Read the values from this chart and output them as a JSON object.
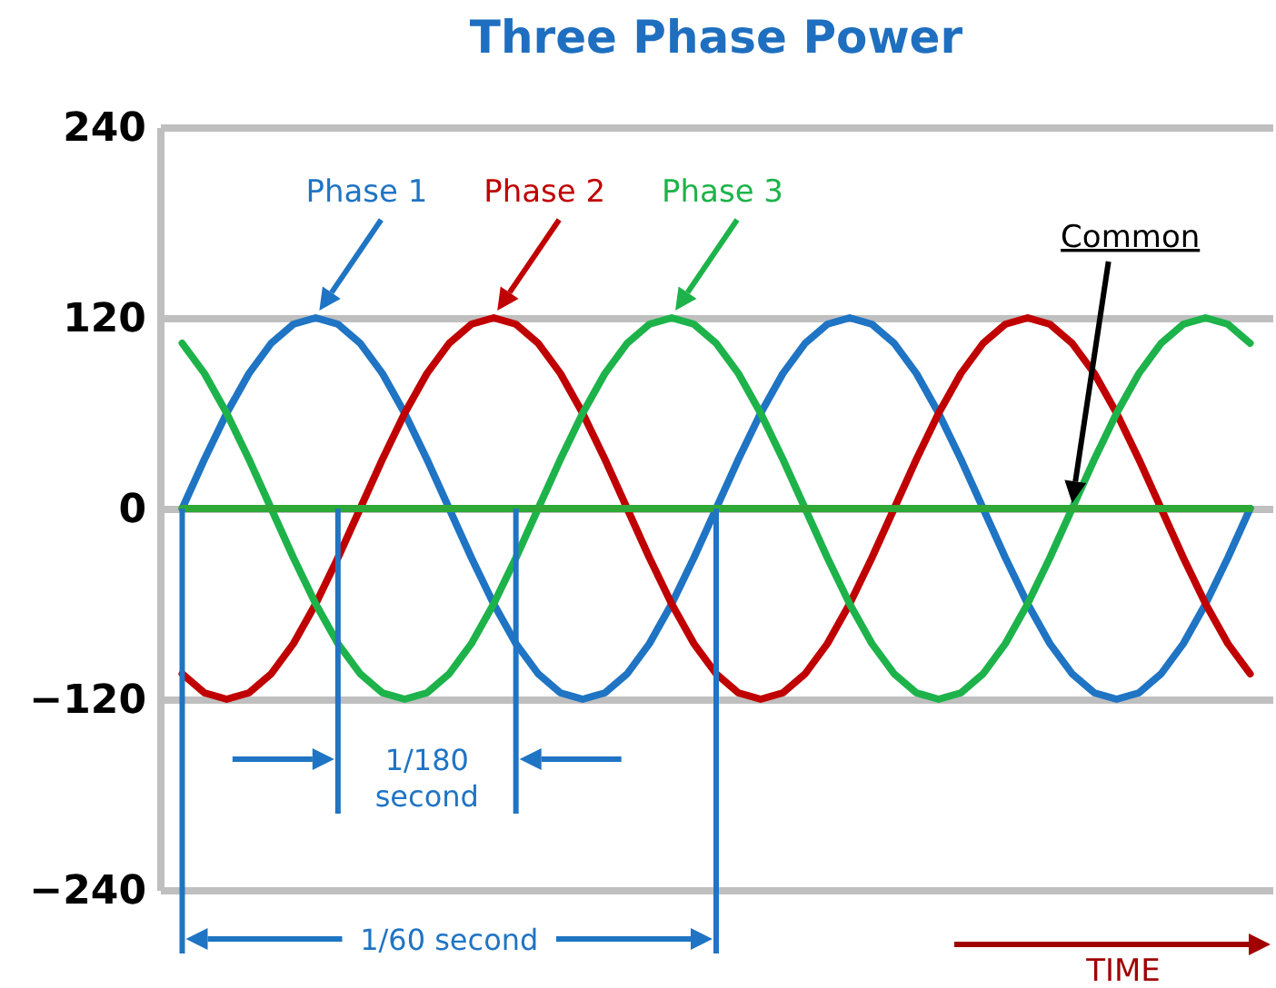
{
  "chart_data": {
    "type": "line",
    "title": "Three Phase Power",
    "xlabel": "TIME",
    "categories": [
      null,
      null,
      null,
      null,
      null,
      null,
      null,
      null,
      null,
      null,
      null,
      null,
      null,
      null,
      null,
      null,
      null,
      null,
      null,
      null,
      null,
      null,
      null,
      null,
      null,
      null,
      null,
      null,
      null,
      null,
      null,
      null,
      null,
      null,
      null,
      null,
      null,
      null,
      null,
      null,
      null,
      null,
      null,
      null,
      null,
      null,
      null,
      null,
      null
    ],
    "series": [
      {
        "name": "Phase 1",
        "color": "#1f74c4",
        "values": [
          0,
          31,
          60,
          85,
          104,
          116,
          120,
          116,
          104,
          85,
          60,
          31,
          0,
          -31,
          -60,
          -85,
          -104,
          -116,
          -120,
          -116,
          -104,
          -85,
          -60,
          -31,
          0,
          31,
          60,
          85,
          104,
          116,
          120,
          116,
          104,
          85,
          60,
          31,
          0,
          -31,
          -60,
          -85,
          -104,
          -116,
          -120,
          -116,
          -104,
          -85,
          -60,
          -31,
          0
        ]
      },
      {
        "name": "Phase 2",
        "color": "#c00000",
        "values": [
          -104,
          -116,
          -120,
          -116,
          -104,
          -85,
          -60,
          -31,
          0,
          31,
          60,
          85,
          104,
          116,
          120,
          116,
          104,
          85,
          60,
          31,
          0,
          -31,
          -60,
          -85,
          -104,
          -116,
          -120,
          -116,
          -104,
          -85,
          -60,
          -31,
          0,
          31,
          60,
          85,
          104,
          116,
          120,
          116,
          104,
          85,
          60,
          31,
          0,
          -31,
          -60,
          -85,
          -104
        ]
      },
      {
        "name": "Phase 3",
        "color": "#1db34a",
        "values": [
          104,
          85,
          60,
          31,
          0,
          -31,
          -60,
          -85,
          -104,
          -116,
          -120,
          -116,
          -104,
          -85,
          -60,
          -31,
          0,
          31,
          60,
          85,
          104,
          116,
          120,
          116,
          104,
          85,
          60,
          31,
          0,
          -31,
          -60,
          -85,
          -104,
          -116,
          -120,
          -116,
          -104,
          -85,
          -60,
          -31,
          0,
          31,
          60,
          85,
          104,
          116,
          120,
          116,
          104
        ]
      },
      {
        "color": "#2ea836",
        "values": [
          0,
          0,
          0,
          0,
          0,
          0,
          0,
          0,
          0,
          0,
          0,
          0,
          0,
          0,
          0,
          0,
          0,
          0,
          0,
          0,
          0,
          0,
          0,
          0,
          0,
          0,
          0,
          0,
          0,
          0,
          0,
          0,
          0,
          0,
          0,
          0,
          0,
          0,
          0,
          0,
          0,
          0,
          0,
          0,
          0,
          0,
          0,
          0,
          0
        ]
      }
    ],
    "ylim": [
      -240,
      240
    ],
    "yticks": [
      -240,
      -120,
      0,
      120,
      240
    ],
    "grid": "y",
    "tick_labels": "y",
    "annotations": [
      "1/180 second",
      "1/60 second",
      "Common"
    ]
  }
}
